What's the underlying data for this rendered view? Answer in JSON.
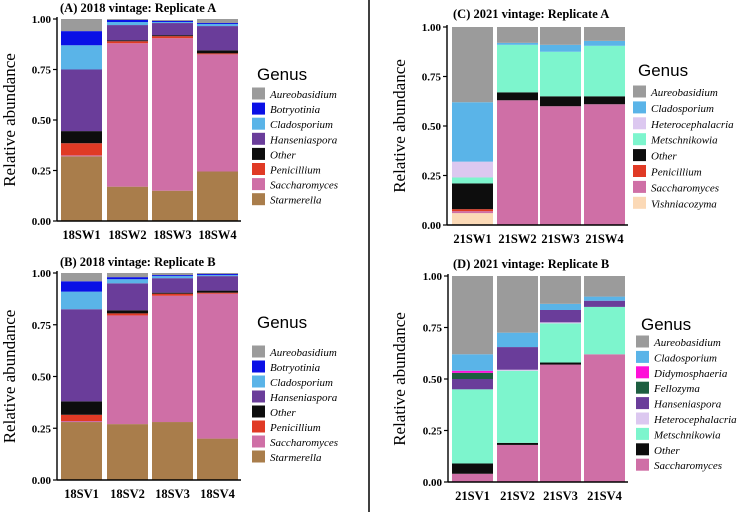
{
  "colors": {
    "Aureobasidium": "#9b9b9b",
    "Botryotinia": "#0a10e6",
    "Cladosporium": "#5ab4e8",
    "Hanseniaspora": "#6a3d9a",
    "Other": "#0d0d0d",
    "Penicillium": "#e03a25",
    "Saccharomyces": "#cf6fa6",
    "Starmerella": "#a97d4b",
    "Heterocephalacria": "#dcc8f0",
    "Metschnikowia": "#7df5cd",
    "Vishniacozyma": "#fbd9b6",
    "Didymosphaeria": "#ff10d8",
    "Fellozyma": "#1d5e40"
  },
  "chart_data": [
    {
      "type": "bar",
      "stacked": true,
      "title": "(A) 2018 vintage: Replicate A",
      "ylabel": "Relative   abundance",
      "ylim": [
        0,
        1
      ],
      "yticks": [
        "0.00",
        "0.25",
        "0.50",
        "0.75",
        "1.00"
      ],
      "categories": [
        "18SW1",
        "18SW2",
        "18SW3",
        "18SW4"
      ],
      "legend_title": "Genus",
      "series": [
        {
          "name": "Starmerella",
          "values": [
            0.32,
            0.17,
            0.15,
            0.245
          ]
        },
        {
          "name": "Saccharomyces",
          "values": [
            0.005,
            0.71,
            0.755,
            0.58
          ]
        },
        {
          "name": "Penicillium",
          "values": [
            0.06,
            0.01,
            0.01,
            0.005
          ]
        },
        {
          "name": "Other",
          "values": [
            0.06,
            0.005,
            0.005,
            0.015
          ]
        },
        {
          "name": "Hanseniaspora",
          "values": [
            0.305,
            0.075,
            0.06,
            0.12
          ]
        },
        {
          "name": "Cladosporium",
          "values": [
            0.12,
            0.015,
            0.005,
            0.01
          ]
        },
        {
          "name": "Botryotinia",
          "values": [
            0.07,
            0.01,
            0.005,
            0.005
          ]
        },
        {
          "name": "Aureobasidium",
          "values": [
            0.06,
            0.005,
            0.005,
            0.02
          ]
        }
      ],
      "legend": [
        "Aureobasidium",
        "Botryotinia",
        "Cladosporium",
        "Hanseniaspora",
        "Other",
        "Penicillium",
        "Saccharomyces",
        "Starmerella"
      ]
    },
    {
      "type": "bar",
      "stacked": true,
      "title": "(B) 2018 vintage: Replicate B",
      "ylabel": "Relative   abundance",
      "ylim": [
        0,
        1
      ],
      "yticks": [
        "0.00",
        "0.25",
        "0.50",
        "0.75",
        "1.00"
      ],
      "categories": [
        "18SV1",
        "18SV2",
        "18SV3",
        "18SV4"
      ],
      "legend_title": "Genus",
      "series": [
        {
          "name": "Starmerella",
          "values": [
            0.28,
            0.27,
            0.28,
            0.2
          ]
        },
        {
          "name": "Saccharomyces",
          "values": [
            0.005,
            0.525,
            0.61,
            0.7
          ]
        },
        {
          "name": "Penicillium",
          "values": [
            0.03,
            0.01,
            0.01,
            0.005
          ]
        },
        {
          "name": "Other",
          "values": [
            0.065,
            0.015,
            0.005,
            0.01
          ]
        },
        {
          "name": "Hanseniaspora",
          "values": [
            0.445,
            0.13,
            0.07,
            0.07
          ]
        },
        {
          "name": "Cladosporium",
          "values": [
            0.085,
            0.02,
            0.01,
            0.005
          ]
        },
        {
          "name": "Botryotinia",
          "values": [
            0.05,
            0.01,
            0.005,
            0.005
          ]
        },
        {
          "name": "Aureobasidium",
          "values": [
            0.04,
            0.02,
            0.01,
            0.005
          ]
        }
      ],
      "legend": [
        "Aureobasidium",
        "Botryotinia",
        "Cladosporium",
        "Hanseniaspora",
        "Other",
        "Penicillium",
        "Saccharomyces",
        "Starmerella"
      ]
    },
    {
      "type": "bar",
      "stacked": true,
      "title": "(C) 2021 vintage: Replicate A",
      "ylabel": "Relative   abundance",
      "ylim": [
        0,
        1
      ],
      "yticks": [
        "0.00",
        "0.25",
        "0.50",
        "0.75",
        "1.00"
      ],
      "categories": [
        "21SW1",
        "21SW2",
        "21SW3",
        "21SW4"
      ],
      "legend_title": "Genus",
      "series": [
        {
          "name": "Vishniacozyma",
          "values": [
            0.06,
            0.0,
            0.0,
            0.0
          ]
        },
        {
          "name": "Saccharomyces",
          "values": [
            0.01,
            0.63,
            0.6,
            0.61
          ]
        },
        {
          "name": "Penicillium",
          "values": [
            0.01,
            0.0,
            0.0,
            0.0
          ]
        },
        {
          "name": "Other",
          "values": [
            0.13,
            0.04,
            0.05,
            0.04
          ]
        },
        {
          "name": "Metschnikowia",
          "values": [
            0.03,
            0.24,
            0.225,
            0.255
          ]
        },
        {
          "name": "Heterocephalacria",
          "values": [
            0.08,
            0.0,
            0.0,
            0.0
          ]
        },
        {
          "name": "Cladosporium",
          "values": [
            0.3,
            0.01,
            0.035,
            0.025
          ]
        },
        {
          "name": "Aureobasidium",
          "values": [
            0.38,
            0.08,
            0.09,
            0.07
          ]
        }
      ],
      "legend": [
        "Aureobasidium",
        "Cladosporium",
        "Heterocephalacria",
        "Metschnikowia",
        "Other",
        "Penicillium",
        "Saccharomyces",
        "Vishniacozyma"
      ]
    },
    {
      "type": "bar",
      "stacked": true,
      "title": "(D) 2021 vintage: Replicate B",
      "ylabel": "Relative   abundance",
      "ylim": [
        0,
        1
      ],
      "yticks": [
        "0.00",
        "0.25",
        "0.50",
        "0.75",
        "1.00"
      ],
      "categories": [
        "21SV1",
        "21SV2",
        "21SV3",
        "21SV4"
      ],
      "legend_title": "Genus",
      "series": [
        {
          "name": "Saccharomyces",
          "values": [
            0.04,
            0.18,
            0.57,
            0.62
          ]
        },
        {
          "name": "Other",
          "values": [
            0.05,
            0.01,
            0.01,
            0.0
          ]
        },
        {
          "name": "Metschnikowia",
          "values": [
            0.36,
            0.35,
            0.19,
            0.23
          ]
        },
        {
          "name": "Heterocephalacria",
          "values": [
            0.0,
            0.005,
            0.005,
            0.0
          ]
        },
        {
          "name": "Hanseniaspora",
          "values": [
            0.05,
            0.11,
            0.06,
            0.03
          ]
        },
        {
          "name": "Fellozyma",
          "values": [
            0.03,
            0.0,
            0.0,
            0.0
          ]
        },
        {
          "name": "Didymosphaeria",
          "values": [
            0.01,
            0.0,
            0.0,
            0.0
          ]
        },
        {
          "name": "Cladosporium",
          "values": [
            0.08,
            0.07,
            0.03,
            0.02
          ]
        },
        {
          "name": "Aureobasidium",
          "values": [
            0.38,
            0.275,
            0.135,
            0.1
          ]
        }
      ],
      "legend": [
        "Aureobasidium",
        "Cladosporium",
        "Didymosphaeria",
        "Fellozyma",
        "Hanseniaspora",
        "Heterocephalacria",
        "Metschnikowia",
        "Other",
        "Saccharomyces"
      ]
    }
  ]
}
